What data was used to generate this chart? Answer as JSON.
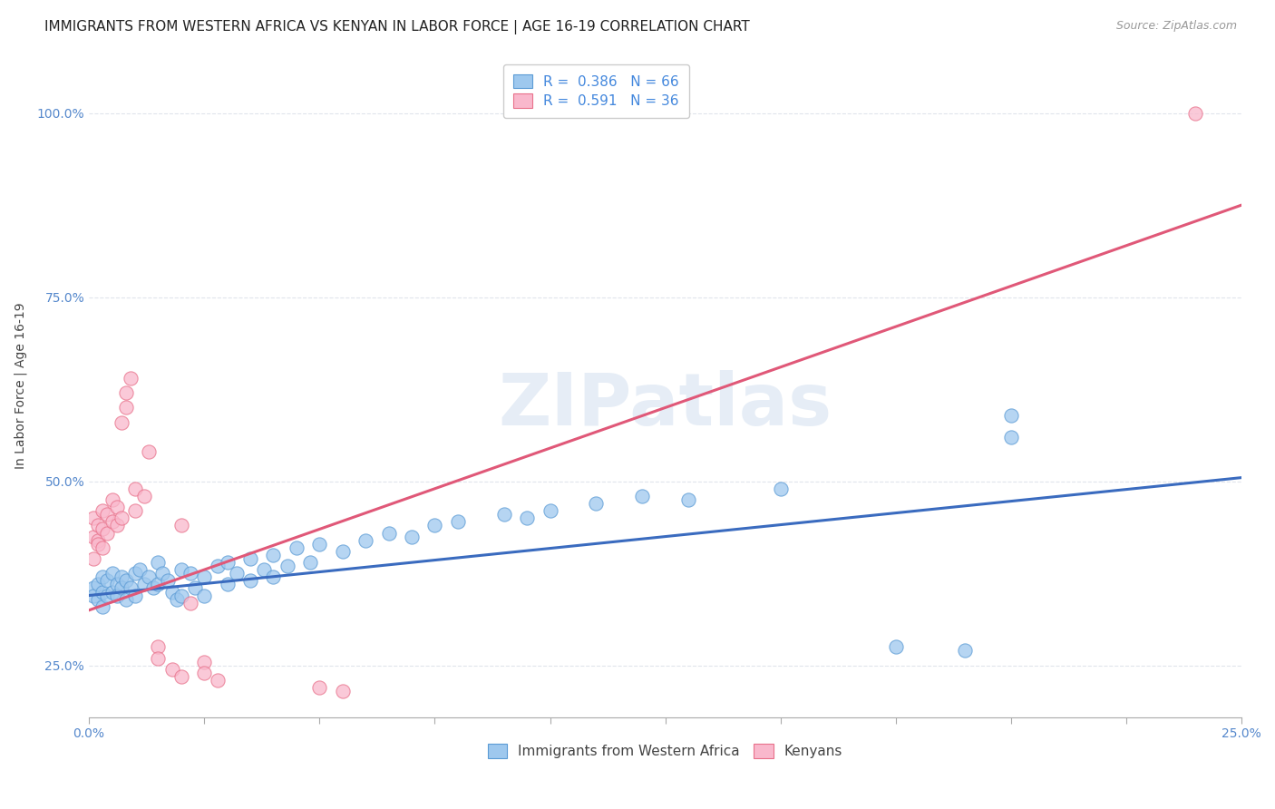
{
  "title": "IMMIGRANTS FROM WESTERN AFRICA VS KENYAN IN LABOR FORCE | AGE 16-19 CORRELATION CHART",
  "source": "Source: ZipAtlas.com",
  "ylabel": "In Labor Force | Age 16-19",
  "xlim": [
    0.0,
    0.25
  ],
  "ylim": [
    0.18,
    1.08
  ],
  "xticks": [
    0.0,
    0.025,
    0.05,
    0.075,
    0.1,
    0.125,
    0.15,
    0.175,
    0.2,
    0.225,
    0.25
  ],
  "xtick_labels": [
    "0.0%",
    "",
    "",
    "",
    "",
    "",
    "",
    "",
    "",
    "",
    "25.0%"
  ],
  "yticks": [
    0.25,
    0.5,
    0.75,
    1.0
  ],
  "ytick_labels": [
    "25.0%",
    "50.0%",
    "75.0%",
    "100.0%"
  ],
  "blue_color": "#9EC8EE",
  "pink_color": "#F9B8CC",
  "blue_edge_color": "#5B9BD5",
  "pink_edge_color": "#E8708A",
  "blue_line_color": "#3A6BBF",
  "pink_line_color": "#E05878",
  "R_blue": 0.386,
  "N_blue": 66,
  "R_pink": 0.591,
  "N_pink": 36,
  "blue_line_x0": 0.0,
  "blue_line_y0": 0.345,
  "blue_line_x1": 0.25,
  "blue_line_y1": 0.505,
  "pink_line_x0": 0.0,
  "pink_line_y0": 0.325,
  "pink_line_x1": 0.25,
  "pink_line_y1": 0.875,
  "blue_scatter": [
    [
      0.001,
      0.355
    ],
    [
      0.001,
      0.345
    ],
    [
      0.002,
      0.36
    ],
    [
      0.002,
      0.34
    ],
    [
      0.003,
      0.37
    ],
    [
      0.003,
      0.35
    ],
    [
      0.003,
      0.33
    ],
    [
      0.004,
      0.365
    ],
    [
      0.004,
      0.345
    ],
    [
      0.005,
      0.375
    ],
    [
      0.005,
      0.35
    ],
    [
      0.006,
      0.36
    ],
    [
      0.006,
      0.345
    ],
    [
      0.007,
      0.37
    ],
    [
      0.007,
      0.355
    ],
    [
      0.008,
      0.365
    ],
    [
      0.008,
      0.34
    ],
    [
      0.009,
      0.355
    ],
    [
      0.01,
      0.375
    ],
    [
      0.01,
      0.345
    ],
    [
      0.011,
      0.38
    ],
    [
      0.012,
      0.36
    ],
    [
      0.013,
      0.37
    ],
    [
      0.014,
      0.355
    ],
    [
      0.015,
      0.39
    ],
    [
      0.015,
      0.36
    ],
    [
      0.016,
      0.375
    ],
    [
      0.017,
      0.365
    ],
    [
      0.018,
      0.35
    ],
    [
      0.019,
      0.34
    ],
    [
      0.02,
      0.38
    ],
    [
      0.02,
      0.345
    ],
    [
      0.022,
      0.375
    ],
    [
      0.023,
      0.355
    ],
    [
      0.025,
      0.37
    ],
    [
      0.025,
      0.345
    ],
    [
      0.028,
      0.385
    ],
    [
      0.03,
      0.39
    ],
    [
      0.03,
      0.36
    ],
    [
      0.032,
      0.375
    ],
    [
      0.035,
      0.395
    ],
    [
      0.035,
      0.365
    ],
    [
      0.038,
      0.38
    ],
    [
      0.04,
      0.4
    ],
    [
      0.04,
      0.37
    ],
    [
      0.043,
      0.385
    ],
    [
      0.045,
      0.41
    ],
    [
      0.048,
      0.39
    ],
    [
      0.05,
      0.415
    ],
    [
      0.055,
      0.405
    ],
    [
      0.06,
      0.42
    ],
    [
      0.065,
      0.43
    ],
    [
      0.07,
      0.425
    ],
    [
      0.075,
      0.44
    ],
    [
      0.08,
      0.445
    ],
    [
      0.09,
      0.455
    ],
    [
      0.095,
      0.45
    ],
    [
      0.1,
      0.46
    ],
    [
      0.11,
      0.47
    ],
    [
      0.12,
      0.48
    ],
    [
      0.13,
      0.475
    ],
    [
      0.15,
      0.49
    ],
    [
      0.175,
      0.275
    ],
    [
      0.19,
      0.27
    ],
    [
      0.2,
      0.59
    ],
    [
      0.2,
      0.56
    ]
  ],
  "pink_scatter": [
    [
      0.001,
      0.425
    ],
    [
      0.001,
      0.45
    ],
    [
      0.001,
      0.395
    ],
    [
      0.002,
      0.44
    ],
    [
      0.002,
      0.42
    ],
    [
      0.002,
      0.415
    ],
    [
      0.003,
      0.46
    ],
    [
      0.003,
      0.435
    ],
    [
      0.003,
      0.41
    ],
    [
      0.004,
      0.455
    ],
    [
      0.004,
      0.43
    ],
    [
      0.005,
      0.475
    ],
    [
      0.005,
      0.445
    ],
    [
      0.006,
      0.465
    ],
    [
      0.006,
      0.44
    ],
    [
      0.007,
      0.45
    ],
    [
      0.007,
      0.58
    ],
    [
      0.008,
      0.6
    ],
    [
      0.008,
      0.62
    ],
    [
      0.009,
      0.64
    ],
    [
      0.01,
      0.49
    ],
    [
      0.01,
      0.46
    ],
    [
      0.012,
      0.48
    ],
    [
      0.013,
      0.54
    ],
    [
      0.015,
      0.275
    ],
    [
      0.015,
      0.26
    ],
    [
      0.018,
      0.245
    ],
    [
      0.02,
      0.235
    ],
    [
      0.02,
      0.44
    ],
    [
      0.022,
      0.335
    ],
    [
      0.025,
      0.255
    ],
    [
      0.025,
      0.24
    ],
    [
      0.028,
      0.23
    ],
    [
      0.05,
      0.22
    ],
    [
      0.055,
      0.215
    ],
    [
      0.24,
      1.0
    ]
  ],
  "watermark": "ZIPatlas",
  "grid_color": "#E0E4EC",
  "background_color": "#FFFFFF",
  "title_fontsize": 11,
  "axis_label_fontsize": 10,
  "tick_fontsize": 10,
  "legend_fontsize": 11
}
